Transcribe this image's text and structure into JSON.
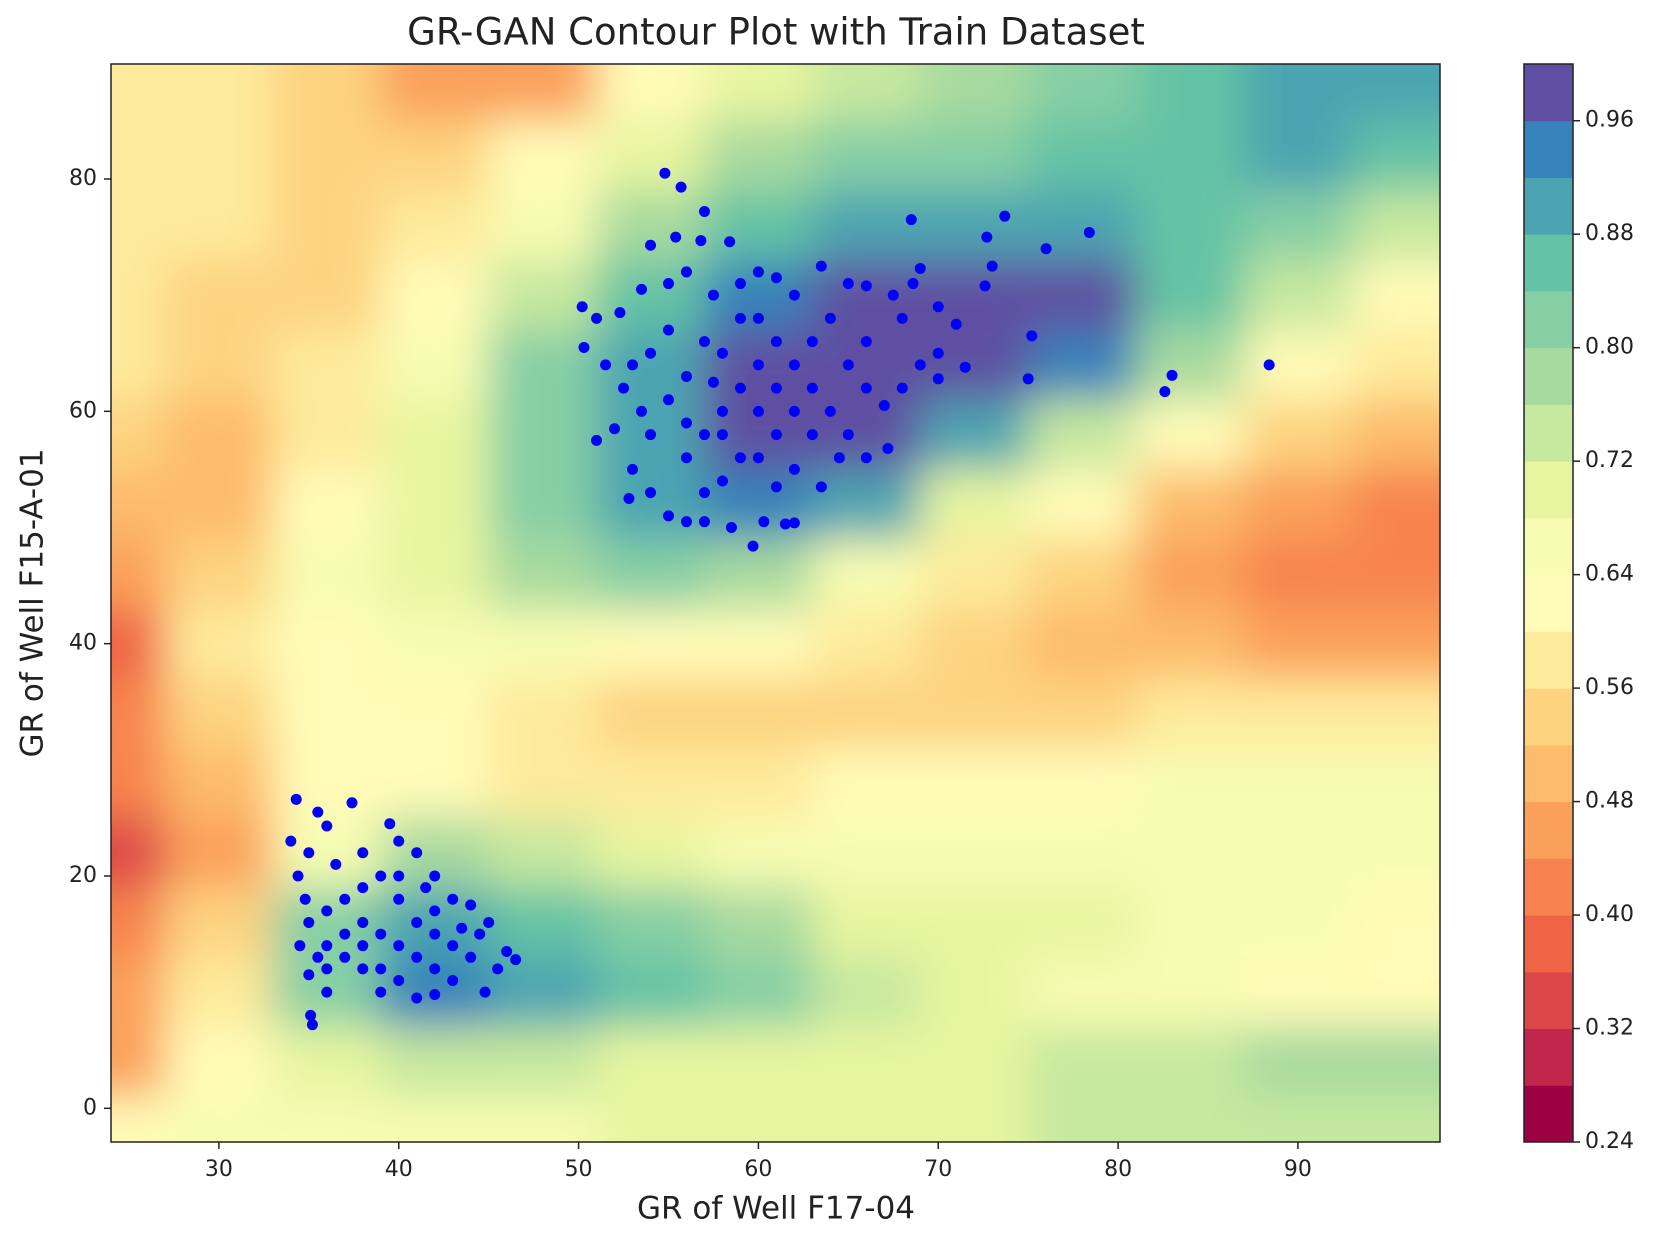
{
  "chart_data": {
    "type": "contour",
    "title": "GR-GAN Contour Plot with Train Dataset",
    "x_label": "GR of Well F17-04",
    "y_label": "GR of Well F15-A-01",
    "xlim": [
      24,
      97.9
    ],
    "ylim": [
      -2.9,
      89.9
    ],
    "xticks": [
      30,
      40,
      50,
      60,
      70,
      80,
      90
    ],
    "yticks": [
      0,
      20,
      40,
      60,
      80
    ],
    "x": [
      24,
      30,
      36,
      42,
      48,
      54,
      60,
      66,
      72,
      78,
      84,
      90,
      96
    ],
    "y": [
      88,
      82,
      76,
      70,
      64,
      58,
      52,
      46,
      40,
      34,
      28,
      22,
      16,
      10,
      4,
      -2
    ],
    "z": [
      [
        0.58,
        0.56,
        0.52,
        0.46,
        0.46,
        0.6,
        0.7,
        0.74,
        0.76,
        0.8,
        0.84,
        0.88,
        0.9
      ],
      [
        0.58,
        0.56,
        0.54,
        0.52,
        0.6,
        0.68,
        0.76,
        0.8,
        0.82,
        0.84,
        0.86,
        0.88,
        0.86
      ],
      [
        0.58,
        0.56,
        0.54,
        0.56,
        0.66,
        0.78,
        0.86,
        0.88,
        0.9,
        0.9,
        0.86,
        0.8,
        0.72
      ],
      [
        0.56,
        0.54,
        0.54,
        0.62,
        0.72,
        0.86,
        0.94,
        0.97,
        0.98,
        0.96,
        0.86,
        0.72,
        0.62
      ],
      [
        0.56,
        0.52,
        0.56,
        0.66,
        0.8,
        0.9,
        0.97,
        0.98,
        0.97,
        0.92,
        0.78,
        0.62,
        0.56
      ],
      [
        0.54,
        0.5,
        0.58,
        0.68,
        0.82,
        0.9,
        0.96,
        0.96,
        0.9,
        0.72,
        0.6,
        0.52,
        0.48
      ],
      [
        0.48,
        0.5,
        0.62,
        0.7,
        0.8,
        0.88,
        0.92,
        0.88,
        0.7,
        0.6,
        0.5,
        0.44,
        0.42
      ],
      [
        0.44,
        0.52,
        0.64,
        0.7,
        0.76,
        0.8,
        0.78,
        0.66,
        0.58,
        0.52,
        0.46,
        0.42,
        0.42
      ],
      [
        0.36,
        0.56,
        0.62,
        0.66,
        0.64,
        0.62,
        0.6,
        0.56,
        0.54,
        0.5,
        0.48,
        0.46,
        0.46
      ],
      [
        0.42,
        0.54,
        0.6,
        0.6,
        0.56,
        0.54,
        0.54,
        0.54,
        0.54,
        0.54,
        0.56,
        0.56,
        0.56
      ],
      [
        0.4,
        0.48,
        0.62,
        0.62,
        0.58,
        0.58,
        0.58,
        0.6,
        0.62,
        0.62,
        0.64,
        0.64,
        0.64
      ],
      [
        0.34,
        0.46,
        0.66,
        0.78,
        0.72,
        0.68,
        0.66,
        0.66,
        0.66,
        0.66,
        0.64,
        0.64,
        0.64
      ],
      [
        0.4,
        0.52,
        0.8,
        0.88,
        0.86,
        0.82,
        0.76,
        0.7,
        0.7,
        0.68,
        0.66,
        0.64,
        0.62
      ],
      [
        0.44,
        0.56,
        0.82,
        0.92,
        0.9,
        0.86,
        0.8,
        0.72,
        0.68,
        0.66,
        0.64,
        0.62,
        0.62
      ],
      [
        0.46,
        0.6,
        0.7,
        0.74,
        0.72,
        0.7,
        0.68,
        0.68,
        0.7,
        0.72,
        0.74,
        0.76,
        0.76
      ],
      [
        0.62,
        0.64,
        0.64,
        0.66,
        0.66,
        0.68,
        0.68,
        0.68,
        0.7,
        0.72,
        0.74,
        0.74,
        0.72
      ]
    ],
    "levels": [
      0.24,
      0.28,
      0.32,
      0.36,
      0.4,
      0.44,
      0.48,
      0.52,
      0.56,
      0.6,
      0.64,
      0.68,
      0.72,
      0.76,
      0.8,
      0.84,
      0.88,
      0.92,
      0.96,
      1.0
    ],
    "colors": [
      "#9e0142",
      "#c1274a",
      "#dc484a",
      "#ef6445",
      "#f7844e",
      "#fba05b",
      "#fdbb6c",
      "#fdd380",
      "#feea9b",
      "#fffbb8",
      "#f7fcb2",
      "#e7f5a0",
      "#c6e89f",
      "#a7da9f",
      "#86cfa5",
      "#65c3a5",
      "#4ba4b1",
      "#3682ba",
      "#5e4fa2"
    ],
    "clim": [
      0.24,
      1.0
    ],
    "cticks": [
      0.24,
      0.32,
      {
        "value": 0.4,
        "label": "0.40"
      },
      0.48,
      0.56,
      0.64,
      0.72,
      {
        "value": 0.8,
        "label": "0.80"
      },
      0.88,
      0.96
    ],
    "scatter": {
      "color": "#0000ff",
      "x": [
        54.8,
        55.7,
        57,
        54,
        55.4,
        56.8,
        58.4,
        50.2,
        51,
        52.3,
        53.5,
        55,
        56,
        57.5,
        59,
        60,
        61,
        62,
        63.5,
        65,
        66,
        67.5,
        68.6,
        69,
        70,
        71,
        68.5,
        72.7,
        73.7,
        76,
        78.4,
        73,
        72.6,
        50.3,
        51.5,
        52.5,
        53.5,
        51,
        52,
        53,
        54,
        52.8,
        55,
        56,
        57,
        58.5,
        59.7,
        60.3,
        61.5,
        62,
        56,
        57,
        58,
        59,
        60,
        61,
        62,
        63,
        64,
        65,
        66,
        64.5,
        61,
        60,
        58,
        57,
        55,
        56,
        54,
        55,
        57,
        59,
        63,
        65,
        66,
        67,
        68,
        69,
        70,
        71.5,
        67.2,
        75.2,
        75,
        82.6,
        83,
        88.4,
        62,
        63,
        60,
        58,
        59,
        62,
        63.5,
        61,
        64,
        66,
        68,
        70,
        53,
        54,
        56,
        58,
        60,
        61,
        57.5,
        34.3,
        37.4,
        35.5,
        36,
        34,
        35,
        36.5,
        38,
        39.5,
        40,
        41,
        42,
        41.5,
        43,
        44,
        45,
        44.5,
        46,
        46.5,
        45.5,
        44.8,
        43,
        42,
        41,
        40,
        39,
        38,
        37,
        36,
        35,
        34.5,
        35,
        36,
        37,
        38,
        39,
        40,
        41,
        42,
        43,
        44,
        42,
        40,
        39,
        38,
        37,
        36,
        35.5,
        34.8,
        34.4,
        35.1,
        35.2,
        36,
        38,
        40,
        42,
        43.5,
        39,
        41
      ],
      "y": [
        80.5,
        79.3,
        77.2,
        74.3,
        75,
        74.7,
        74.6,
        69,
        68,
        68.5,
        70.5,
        71,
        72,
        70,
        71,
        72,
        71.5,
        70,
        72.5,
        71,
        70.8,
        70,
        71,
        72.3,
        69,
        67.5,
        76.5,
        75,
        76.8,
        74,
        75.4,
        72.5,
        70.8,
        65.5,
        64,
        62,
        60,
        57.5,
        58.5,
        55,
        53,
        52.5,
        51,
        50.5,
        50.5,
        50,
        48.4,
        50.5,
        50.3,
        50.4,
        56,
        58,
        60,
        62,
        64,
        66,
        64,
        62,
        60,
        58,
        56,
        56,
        58,
        56,
        54,
        53,
        61,
        63,
        65,
        67,
        66,
        68,
        66,
        64,
        62,
        60.5,
        62,
        64,
        62.8,
        63.8,
        56.8,
        66.5,
        62.8,
        61.7,
        63.1,
        64,
        60,
        58,
        60,
        58,
        56,
        55,
        53.5,
        53.5,
        68,
        66,
        68,
        65,
        64,
        58,
        59,
        65,
        68,
        62,
        62.5,
        26.6,
        26.3,
        25.5,
        24.3,
        23,
        22,
        21,
        22,
        24.5,
        23,
        22,
        20,
        19,
        18,
        17.5,
        16,
        15,
        13.5,
        12.8,
        12,
        10,
        11,
        9.8,
        9.5,
        11,
        10,
        12,
        13,
        12,
        11.5,
        14,
        16,
        17,
        18,
        19,
        20,
        18,
        16,
        15,
        14,
        13,
        12,
        14,
        15,
        16,
        15,
        14,
        13,
        18,
        20,
        8,
        7.2,
        10,
        14,
        20,
        17,
        15.5,
        12,
        13
      ]
    }
  }
}
